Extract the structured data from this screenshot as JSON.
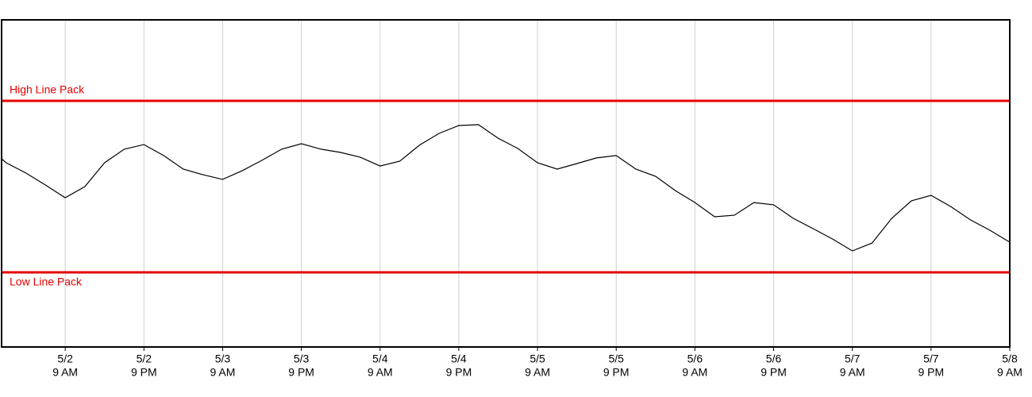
{
  "chart_data": {
    "type": "line",
    "x": [
      -9.7,
      -9,
      -6,
      -3,
      0,
      3,
      6,
      9,
      12,
      15,
      18,
      21,
      24,
      27,
      30,
      33,
      36,
      39,
      42,
      45,
      48,
      51,
      54,
      57,
      60,
      63,
      66,
      69,
      72,
      75,
      78,
      81,
      84,
      87,
      90,
      93,
      96,
      99,
      102,
      105,
      108,
      111,
      114,
      117,
      120,
      123,
      126,
      129,
      132,
      135,
      138,
      141,
      144
    ],
    "series": [
      {
        "color": "#000000",
        "values": [
          66.2,
          63.9,
          57.9,
          50.9,
          43.5,
          50.0,
          63.9,
          71.8,
          74.5,
          68.1,
          60.2,
          56.9,
          54.2,
          59.3,
          65.3,
          71.8,
          75.0,
          71.8,
          69.9,
          67.1,
          62.0,
          64.8,
          74.1,
          81.0,
          85.6,
          86.1,
          78.2,
          72.2,
          63.9,
          60.2,
          63.4,
          66.7,
          68.1,
          60.2,
          56.0,
          47.7,
          40.7,
          32.4,
          33.3,
          40.7,
          39.4,
          31.5,
          25.5,
          19.4,
          12.5,
          17.1,
          31.5,
          41.7,
          44.9,
          38.4,
          30.6,
          24.5,
          17.6
        ]
      }
    ],
    "reference_lines": [
      {
        "label": "High Line Pack",
        "value": 100,
        "color": "#e60000",
        "label_side": "above"
      },
      {
        "label": "Low Line Pack",
        "value": 0,
        "color": "#e60000",
        "label_side": "below"
      }
    ],
    "xlim": [
      -9.7,
      144
    ],
    "ylim": [
      -43.5,
      147.2
    ],
    "xticks": [
      {
        "value": 0,
        "label": [
          "5/2",
          "9 AM"
        ]
      },
      {
        "value": 12,
        "label": [
          "5/2",
          "9 PM"
        ]
      },
      {
        "value": 24,
        "label": [
          "5/3",
          "9 AM"
        ]
      },
      {
        "value": 36,
        "label": [
          "5/3",
          "9 PM"
        ]
      },
      {
        "value": 48,
        "label": [
          "5/4",
          "9 AM"
        ]
      },
      {
        "value": 60,
        "label": [
          "5/4",
          "9 PM"
        ]
      },
      {
        "value": 72,
        "label": [
          "5/5",
          "9 AM"
        ]
      },
      {
        "value": 84,
        "label": [
          "5/5",
          "9 PM"
        ]
      },
      {
        "value": 96,
        "label": [
          "5/6",
          "9 AM"
        ]
      },
      {
        "value": 108,
        "label": [
          "5/6",
          "9 PM"
        ]
      },
      {
        "value": 120,
        "label": [
          "5/7",
          "9 AM"
        ]
      },
      {
        "value": 132,
        "label": [
          "5/7",
          "9 PM"
        ]
      },
      {
        "value": 144,
        "label": [
          "5/8",
          "9 AM"
        ]
      }
    ],
    "grid": true
  }
}
